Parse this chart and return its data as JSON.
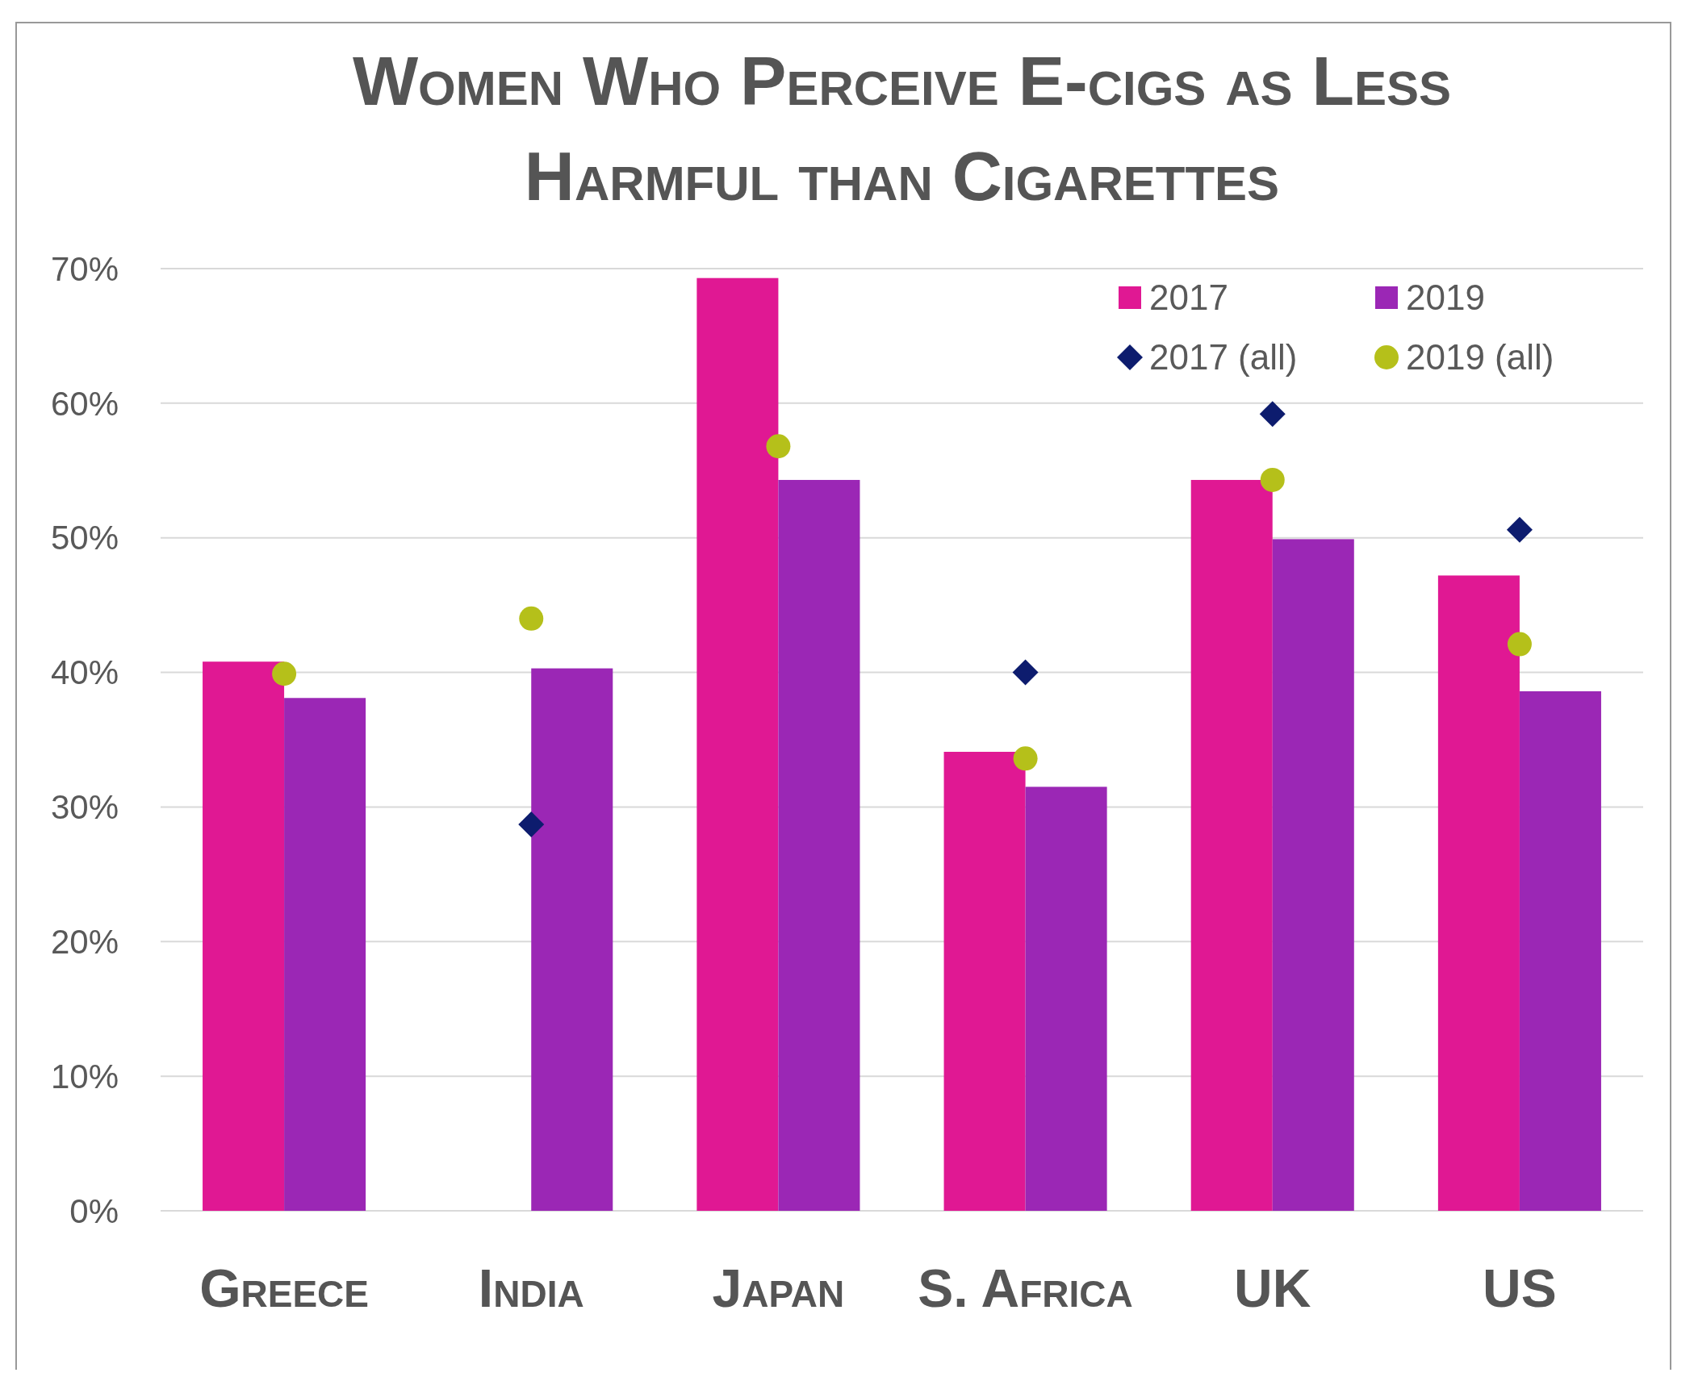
{
  "chart_data": {
    "type": "bar",
    "title": "Women Who Perceive E-cigs as Less Harmful than Cigarettes",
    "categories": [
      "Greece",
      "India",
      "Japan",
      "S. Africa",
      "UK",
      "US"
    ],
    "series": [
      {
        "name": "2017",
        "color": "#e01893",
        "values": [
          40.8,
          null,
          69.3,
          34.1,
          54.3,
          47.2
        ]
      },
      {
        "name": "2019",
        "color": "#9b27b5",
        "values": [
          38.1,
          40.3,
          54.3,
          31.5,
          49.9,
          38.6
        ]
      },
      {
        "name": "2017 (all)",
        "type": "scatter",
        "marker": "diamond",
        "color": "#0d1c6e",
        "x": [
          "Greece",
          "India",
          "Japan",
          "S. Africa",
          "UK",
          "US"
        ],
        "values": [
          null,
          28.7,
          null,
          40.0,
          59.2,
          50.6
        ]
      },
      {
        "name": "2019 (all)",
        "type": "scatter",
        "marker": "circle",
        "color": "#b5c01a",
        "x": [
          "Greece",
          "India",
          "Japan",
          "S. Africa",
          "UK",
          "US"
        ],
        "values": [
          39.9,
          44.0,
          56.8,
          33.6,
          54.3,
          42.1
        ]
      }
    ],
    "ylim": [
      0,
      70
    ],
    "yticks": [
      {
        "value": 0,
        "label": "0%"
      },
      {
        "value": 10,
        "label": "10%"
      },
      {
        "value": 20,
        "label": "20%"
      },
      {
        "value": 30,
        "label": "30%"
      },
      {
        "value": 40,
        "label": "40%"
      },
      {
        "value": 50,
        "label": "50%"
      },
      {
        "value": 60,
        "label": "60%"
      },
      {
        "value": 70,
        "label": "70%"
      }
    ],
    "grid": "y",
    "legend": "top right"
  }
}
